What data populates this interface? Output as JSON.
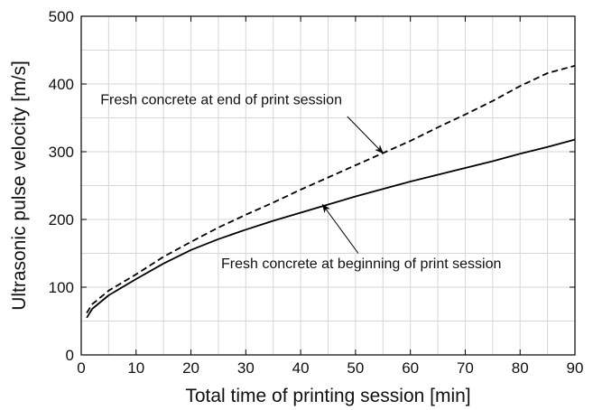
{
  "chart_data": {
    "type": "line",
    "xlabel": "Total time of printing session [min]",
    "ylabel": "Ultrasonic pulse velocity  [m/s]",
    "xlim": [
      0,
      90
    ],
    "ylim": [
      0,
      500
    ],
    "x_ticks": [
      0,
      10,
      20,
      30,
      40,
      50,
      60,
      70,
      80,
      90
    ],
    "y_ticks": [
      0,
      100,
      200,
      300,
      400,
      500
    ],
    "grid": true,
    "minor_grid_step_x": 5,
    "minor_grid_step_y": 50,
    "legend": "none",
    "series": [
      {
        "style": "solid",
        "color": "#000000",
        "x": [
          1,
          2,
          5,
          10,
          15,
          20,
          25,
          30,
          35,
          40,
          45,
          50,
          55,
          60,
          65,
          70,
          75,
          80,
          85,
          90
        ],
        "y": [
          55,
          68,
          88,
          112,
          135,
          155,
          171,
          185,
          198,
          210,
          222,
          234,
          245,
          256,
          266,
          276,
          286,
          297,
          307,
          318
        ]
      },
      {
        "style": "dashed",
        "color": "#000000",
        "x": [
          1,
          2,
          5,
          10,
          15,
          20,
          25,
          30,
          35,
          40,
          45,
          50,
          55,
          60,
          65,
          70,
          75,
          80,
          85,
          90
        ],
        "y": [
          62,
          75,
          95,
          119,
          145,
          167,
          188,
          207,
          225,
          244,
          262,
          280,
          298,
          316,
          336,
          355,
          375,
          397,
          416,
          427
        ]
      }
    ],
    "annotations": [
      {
        "text": "Fresh concrete at end of print session",
        "arrow_to": [
          55,
          298
        ],
        "text_at": [
          3.5,
          370
        ]
      },
      {
        "text": "Fresh concrete at beginning of print session",
        "arrow_to": [
          44,
          222
        ],
        "text_at": [
          25.5,
          128
        ]
      }
    ]
  }
}
